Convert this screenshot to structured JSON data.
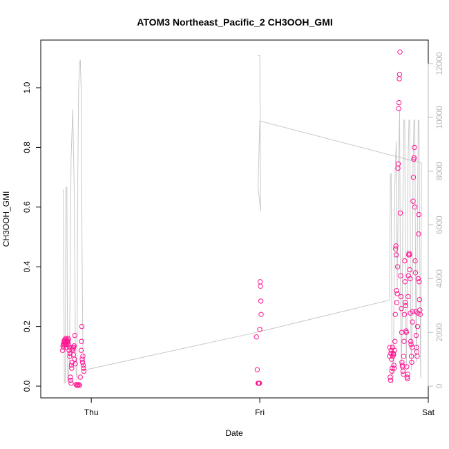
{
  "chart_data": {
    "type": "scatter",
    "title": "ATOM3 Northeast_Pacific_2 CH3OOH_GMI",
    "xlabel": "Date",
    "ylabel": "CH3OOH_GMI",
    "x_ticks": [
      "Thu",
      "Fri",
      "Sat"
    ],
    "ylim": [
      0,
      1.15
    ],
    "y_ticks": [
      "0.0",
      "0.2",
      "0.4",
      "0.6",
      "0.8",
      "1.0"
    ],
    "y2lim": [
      0,
      12500
    ],
    "y2_ticks": [
      "0",
      "2000",
      "4000",
      "6000",
      "8000",
      "10000",
      "12000"
    ],
    "colors": {
      "points": "#ff1493",
      "line": "#c8c8c8",
      "right_axis": "#b8b8b8"
    },
    "series": [
      {
        "type": "scatter",
        "axis": "left",
        "points": [
          [
            -0.17,
            0.12
          ],
          [
            -0.168,
            0.135
          ],
          [
            -0.166,
            0.14
          ],
          [
            -0.164,
            0.13
          ],
          [
            -0.162,
            0.15
          ],
          [
            -0.16,
            0.145
          ],
          [
            -0.158,
            0.155
          ],
          [
            -0.156,
            0.14
          ],
          [
            -0.154,
            0.15
          ],
          [
            -0.152,
            0.16
          ],
          [
            -0.15,
            0.14
          ],
          [
            -0.148,
            0.155
          ],
          [
            -0.146,
            0.13
          ],
          [
            -0.144,
            0.15
          ],
          [
            -0.142,
            0.145
          ],
          [
            -0.14,
            0.15
          ],
          [
            -0.138,
            0.16
          ],
          [
            -0.136,
            0.155
          ],
          [
            -0.134,
            0.14
          ],
          [
            -0.132,
            0.12
          ],
          [
            -0.13,
            0.13
          ],
          [
            -0.128,
            0.1
          ],
          [
            -0.126,
            0.11
          ],
          [
            -0.124,
            0.03
          ],
          [
            -0.122,
            0.02
          ],
          [
            -0.12,
            0.01
          ],
          [
            -0.118,
            0.07
          ],
          [
            -0.116,
            0.06
          ],
          [
            -0.114,
            0.08
          ],
          [
            -0.112,
            0.12
          ],
          [
            -0.11,
            0.125
          ],
          [
            -0.108,
            0.13
          ],
          [
            -0.106,
            0.105
          ],
          [
            -0.104,
            0.13
          ],
          [
            -0.102,
            0.135
          ],
          [
            -0.1,
            0.09
          ],
          [
            -0.098,
            0.17
          ],
          [
            -0.095,
            0.075
          ],
          [
            -0.09,
            0.005
          ],
          [
            -0.085,
            0.003
          ],
          [
            -0.08,
            0.003
          ],
          [
            -0.075,
            0.005
          ],
          [
            -0.07,
            0.003
          ],
          [
            -0.065,
            0.03
          ],
          [
            -0.06,
            0.12
          ],
          [
            -0.058,
            0.15
          ],
          [
            -0.056,
            0.2
          ],
          [
            -0.054,
            0.09
          ],
          [
            -0.052,
            0.08
          ],
          [
            -0.05,
            0.1
          ],
          [
            -0.048,
            0.07
          ],
          [
            -0.046,
            0.06
          ],
          [
            -0.044,
            0.05
          ],
          [
            0.98,
            0.165
          ],
          [
            0.985,
            0.055
          ],
          [
            0.99,
            0.01
          ],
          [
            0.992,
            0.01
          ],
          [
            0.995,
            0.01
          ],
          [
            0.998,
            0.01
          ],
          [
            1.0,
            0.19
          ],
          [
            1.002,
            0.35
          ],
          [
            1.004,
            0.335
          ],
          [
            1.006,
            0.285
          ],
          [
            1.008,
            0.24
          ],
          [
            1.77,
            0.1
          ],
          [
            1.772,
            0.13
          ],
          [
            1.774,
            0.03
          ],
          [
            1.776,
            0.02
          ],
          [
            1.778,
            0.11
          ],
          [
            1.78,
            0.12
          ],
          [
            1.782,
            0.09
          ],
          [
            1.784,
            0.05
          ],
          [
            1.786,
            0.06
          ],
          [
            1.788,
            0.13
          ],
          [
            1.79,
            0.1
          ],
          [
            1.792,
            0.11
          ],
          [
            1.794,
            0.105
          ],
          [
            1.796,
            0.07
          ],
          [
            1.798,
            0.06
          ],
          [
            1.8,
            0.12
          ],
          [
            1.802,
            0.15
          ],
          [
            1.804,
            0.24
          ],
          [
            1.806,
            0.46
          ],
          [
            1.808,
            0.47
          ],
          [
            1.81,
            0.44
          ],
          [
            1.812,
            0.32
          ],
          [
            1.814,
            0.28
          ],
          [
            1.816,
            0.31
          ],
          [
            1.818,
            0.4
          ],
          [
            1.82,
            0.73
          ],
          [
            1.822,
            0.745
          ],
          [
            1.824,
            0.93
          ],
          [
            1.826,
            0.95
          ],
          [
            1.828,
            1.03
          ],
          [
            1.83,
            1.045
          ],
          [
            1.832,
            1.12
          ],
          [
            1.834,
            0.58
          ],
          [
            1.836,
            0.37
          ],
          [
            1.838,
            0.3
          ],
          [
            1.84,
            0.26
          ],
          [
            1.842,
            0.18
          ],
          [
            1.844,
            0.08
          ],
          [
            1.846,
            0.07
          ],
          [
            1.848,
            0.065
          ],
          [
            1.85,
            0.05
          ],
          [
            1.852,
            0.04
          ],
          [
            1.854,
            0.1
          ],
          [
            1.856,
            0.15
          ],
          [
            1.858,
            0.24
          ],
          [
            1.86,
            0.42
          ],
          [
            1.862,
            0.35
          ],
          [
            1.864,
            0.28
          ],
          [
            1.866,
            0.27
          ],
          [
            1.868,
            0.185
          ],
          [
            1.87,
            0.18
          ],
          [
            1.872,
            0.065
          ],
          [
            1.874,
            0.03
          ],
          [
            1.876,
            0.025
          ],
          [
            1.878,
            0.04
          ],
          [
            1.88,
            0.3
          ],
          [
            1.882,
            0.37
          ],
          [
            1.884,
            0.44
          ],
          [
            1.886,
            0.445
          ],
          [
            1.888,
            0.44
          ],
          [
            1.89,
            0.39
          ],
          [
            1.892,
            0.36
          ],
          [
            1.894,
            0.245
          ],
          [
            1.896,
            0.15
          ],
          [
            1.898,
            0.14
          ],
          [
            1.9,
            0.1
          ],
          [
            1.902,
            0.08
          ],
          [
            1.904,
            0.13
          ],
          [
            1.906,
            0.215
          ],
          [
            1.908,
            0.25
          ],
          [
            1.91,
            0.62
          ],
          [
            1.912,
            0.7
          ],
          [
            1.914,
            0.76
          ],
          [
            1.916,
            0.765
          ],
          [
            1.918,
            0.8
          ],
          [
            1.92,
            0.6
          ],
          [
            1.922,
            0.42
          ],
          [
            1.924,
            0.38
          ],
          [
            1.926,
            0.25
          ],
          [
            1.928,
            0.17
          ],
          [
            1.93,
            0.13
          ],
          [
            1.932,
            0.115
          ],
          [
            1.934,
            0.1
          ],
          [
            1.936,
            0.2
          ],
          [
            1.938,
            0.245
          ],
          [
            1.94,
            0.36
          ],
          [
            1.942,
            0.51
          ],
          [
            1.944,
            0.575
          ],
          [
            1.946,
            0.35
          ],
          [
            1.948,
            0.29
          ],
          [
            1.95,
            0.255
          ],
          [
            1.952,
            0.24
          ]
        ]
      },
      {
        "type": "line",
        "axis": "right",
        "points": [
          [
            -0.17,
            7300
          ],
          [
            -0.165,
            7300
          ],
          [
            -0.16,
            120
          ],
          [
            -0.155,
            120
          ],
          [
            -0.15,
            7400
          ],
          [
            -0.145,
            7400
          ],
          [
            -0.14,
            140
          ],
          [
            -0.13,
            800
          ],
          [
            -0.12,
            8500
          ],
          [
            -0.11,
            10300
          ],
          [
            -0.1,
            6800
          ],
          [
            -0.095,
            1800
          ],
          [
            -0.09,
            500
          ],
          [
            -0.085,
            200
          ],
          [
            -0.08,
            8000
          ],
          [
            -0.075,
            11200
          ],
          [
            -0.07,
            12000
          ],
          [
            -0.065,
            12150
          ],
          [
            -0.06,
            11000
          ],
          [
            -0.055,
            5000
          ],
          [
            -0.05,
            1400
          ],
          [
            -0.045,
            700
          ],
          [
            -0.04,
            600
          ],
          [
            0.98,
            2000
          ],
          [
            1.77,
            3200
          ],
          [
            1.775,
            7900
          ],
          [
            1.78,
            7900
          ],
          [
            1.785,
            200
          ],
          [
            1.79,
            100
          ],
          [
            1.795,
            1800
          ],
          [
            1.8,
            7000
          ],
          [
            1.805,
            8300
          ],
          [
            1.81,
            9100
          ],
          [
            1.815,
            3600
          ],
          [
            1.82,
            6100
          ],
          [
            1.825,
            8400
          ],
          [
            1.83,
            10300
          ],
          [
            1.835,
            2900
          ],
          [
            1.84,
            600
          ],
          [
            1.845,
            2400
          ],
          [
            1.85,
            7500
          ],
          [
            1.855,
            9900
          ],
          [
            1.86,
            9900
          ],
          [
            1.865,
            3100
          ],
          [
            1.87,
            700
          ],
          [
            1.875,
            3200
          ],
          [
            1.88,
            8300
          ],
          [
            1.885,
            9900
          ],
          [
            1.89,
            9900
          ],
          [
            1.895,
            3100
          ],
          [
            1.9,
            600
          ],
          [
            1.905,
            3000
          ],
          [
            1.91,
            8400
          ],
          [
            1.915,
            9900
          ],
          [
            1.92,
            9900
          ],
          [
            1.925,
            3400
          ],
          [
            1.93,
            900
          ],
          [
            1.935,
            5100
          ],
          [
            1.94,
            9900
          ],
          [
            1.945,
            9900
          ],
          [
            1.95,
            4200
          ],
          [
            1.955,
            300
          ],
          [
            1.96,
            8300
          ],
          [
            1.0,
            9870
          ],
          [
            0.99,
            7400
          ],
          [
            1.005,
            6500
          ],
          [
            1.0,
            12300
          ],
          [
            0.99,
            12300
          ]
        ]
      }
    ]
  }
}
